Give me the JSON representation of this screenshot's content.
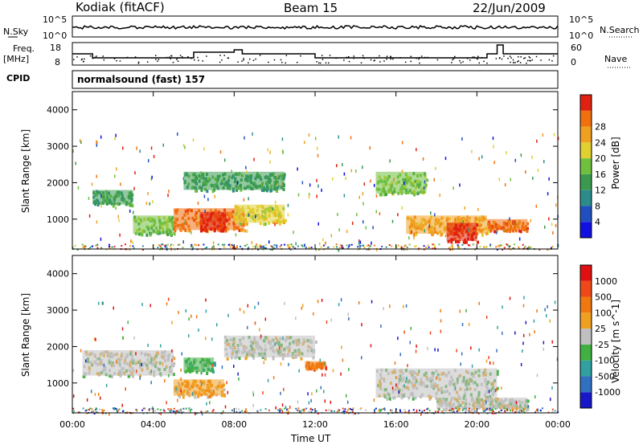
{
  "header": {
    "station": "Kodiak (fitACF)",
    "beam": "Beam 15",
    "date": "22/Jun/2009"
  },
  "panel_labels": {
    "nsky": "N.Sky",
    "nsearch": "N.Search",
    "freq_line1": "Freq.",
    "freq_line2": "[MHz]",
    "nave": "Nave",
    "cpid": "CPID",
    "cpid_value": "normalsound (fast) 157"
  },
  "small_axis": {
    "noise_top": "10^5",
    "noise_bottom": "10^0",
    "freq_top": "18",
    "freq_bottom": "8",
    "nave_top": "60",
    "nave_bottom": "0"
  },
  "chart_data": [
    {
      "type": "heatmap",
      "name": "Power",
      "ylabel": "Slant Range [km]",
      "xlabel": "Time UT",
      "xticks": [
        "00:00",
        "04:00",
        "08:00",
        "12:00",
        "16:00",
        "20:00",
        "00:00"
      ],
      "yticks": [
        "1000",
        "2000",
        "3000",
        "4000"
      ],
      "ylim": [
        180,
        4500
      ],
      "colorbar": {
        "label": "Power [dB]",
        "ticks": [
          "4",
          "8",
          "12",
          "16",
          "20",
          "24",
          "28"
        ],
        "colors": [
          "#1010e0",
          "#2050c0",
          "#2c8c8c",
          "#3a9a50",
          "#70c040",
          "#e0d030",
          "#f0a020",
          "#f07010",
          "#e02010"
        ]
      },
      "regions": [
        {
          "t0": 1.0,
          "t1": 3.0,
          "r0": 1400,
          "r1": 1800,
          "c": 3
        },
        {
          "t0": 3.0,
          "t1": 5.0,
          "r0": 600,
          "r1": 1100,
          "c": 4
        },
        {
          "t0": 5.0,
          "t1": 8.5,
          "r0": 700,
          "r1": 1300,
          "c": 7
        },
        {
          "t0": 6.3,
          "t1": 7.6,
          "r0": 700,
          "r1": 1200,
          "c": 8
        },
        {
          "t0": 8.0,
          "t1": 10.5,
          "r0": 900,
          "r1": 1400,
          "c": 5
        },
        {
          "t0": 5.5,
          "t1": 10.5,
          "r0": 1800,
          "r1": 2300,
          "c": 3
        },
        {
          "t0": 15.0,
          "t1": 17.5,
          "r0": 1700,
          "r1": 2300,
          "c": 4
        },
        {
          "t0": 16.5,
          "t1": 20.5,
          "r0": 600,
          "r1": 1100,
          "c": 6
        },
        {
          "t0": 18.5,
          "t1": 20.0,
          "r0": 400,
          "r1": 900,
          "c": 8
        },
        {
          "t0": 20.5,
          "t1": 22.5,
          "r0": 700,
          "r1": 1000,
          "c": 7
        }
      ]
    },
    {
      "type": "heatmap",
      "name": "Velocity",
      "ylabel": "Slant Range [km]",
      "xlabel": "Time UT",
      "xticks": [
        "00:00",
        "04:00",
        "08:00",
        "12:00",
        "16:00",
        "20:00",
        "00:00"
      ],
      "yticks": [
        "1000",
        "2000",
        "3000",
        "4000"
      ],
      "ylim": [
        180,
        4500
      ],
      "colorbar": {
        "label": "Velocity [m s^-1]",
        "ticks": [
          "1000",
          "500",
          "100",
          "25",
          "-25",
          "-100",
          "-500",
          "-1000"
        ],
        "colors": [
          "#1818c8",
          "#3070c0",
          "#30a0a0",
          "#40b040",
          "#c0c0c0",
          "#f0a020",
          "#f07810",
          "#f04818",
          "#e01010"
        ]
      },
      "regions": [
        {
          "t0": 0.5,
          "t1": 5.0,
          "r0": 1200,
          "r1": 1900,
          "c": 4
        },
        {
          "t0": 5.0,
          "t1": 7.5,
          "r0": 650,
          "r1": 1100,
          "c": 5
        },
        {
          "t0": 5.5,
          "t1": 7.0,
          "r0": 1300,
          "r1": 1700,
          "c": 3
        },
        {
          "t0": 7.5,
          "t1": 12.0,
          "r0": 1700,
          "r1": 2300,
          "c": 4
        },
        {
          "t0": 15.0,
          "t1": 21.0,
          "r0": 600,
          "r1": 1400,
          "c": 4
        },
        {
          "t0": 18.0,
          "t1": 22.5,
          "r0": 300,
          "r1": 600,
          "c": 4
        },
        {
          "t0": 11.5,
          "t1": 12.5,
          "r0": 1400,
          "r1": 1600,
          "c": 6
        }
      ]
    }
  ]
}
